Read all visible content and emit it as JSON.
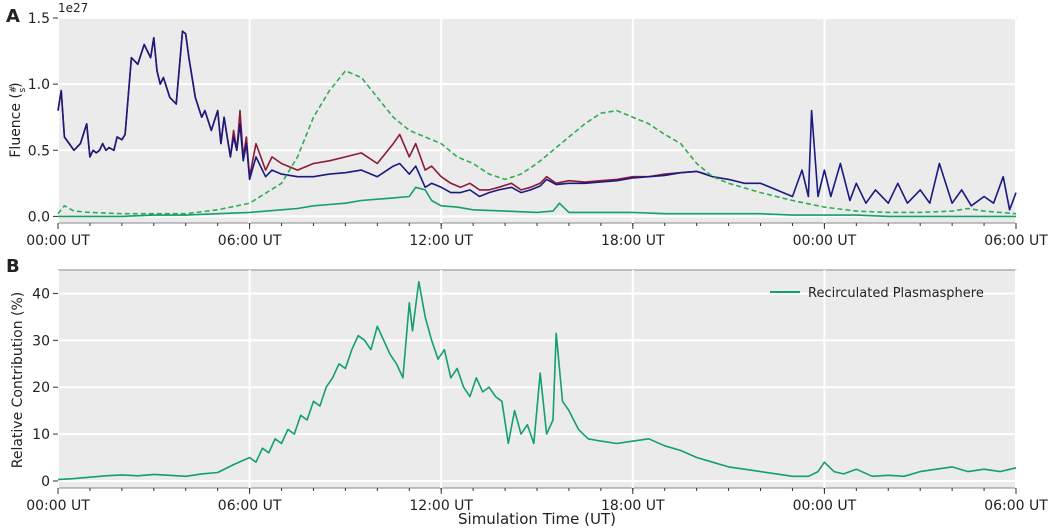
{
  "figure": {
    "xlabel": "Simulation Time (UT)"
  },
  "chart_data": [
    {
      "panel_label": "A",
      "type": "line",
      "title": "",
      "ylabel": "Fluence (#/s)",
      "ylabel_main": "Fluence (",
      "ylabel_num": "#",
      "ylabel_den": "s",
      "ylabel_close": ")",
      "y_offset_label": "1e27",
      "xlim": [
        0,
        30
      ],
      "ylim": [
        -0.05,
        1.5
      ],
      "yticks": [
        0.0,
        0.5,
        1.0,
        1.5
      ],
      "ytick_labels": [
        "0.0",
        "0.5",
        "1.0",
        "1.5"
      ],
      "xticks": [
        0,
        6,
        12,
        18,
        24,
        30
      ],
      "xtick_labels": [
        "00:00 UT",
        "06:00 UT",
        "12:00 UT",
        "18:00 UT",
        "00:00 UT",
        "06:00 UT"
      ],
      "grid": true,
      "legend": null,
      "series": [
        {
          "color": "#8b1a3a",
          "style": "solid",
          "x": [
            0,
            0.1,
            0.2,
            0.35,
            0.5,
            0.7,
            0.9,
            1.0,
            1.1,
            1.2,
            1.3,
            1.4,
            1.5,
            1.6,
            1.75,
            1.85,
            2.0,
            2.1,
            2.3,
            2.5,
            2.7,
            2.9,
            3.0,
            3.1,
            3.2,
            3.3,
            3.5,
            3.7,
            3.9,
            4.0,
            4.1,
            4.3,
            4.5,
            4.6,
            4.8,
            5.0,
            5.1,
            5.2,
            5.3,
            5.4,
            5.5,
            5.6,
            5.7,
            5.8,
            5.9,
            6.0,
            6.2,
            6.5,
            6.7,
            7.0,
            7.5,
            8.0,
            8.5,
            9.0,
            9.5,
            10.0,
            10.5,
            10.7,
            11.0,
            11.2,
            11.5,
            11.7,
            12.0,
            12.3,
            12.6,
            12.9,
            13.2,
            13.5,
            13.8,
            14.2,
            14.5,
            14.8,
            15.1,
            15.3,
            15.6,
            16.0,
            16.5,
            17.0,
            17.5,
            18.0,
            18.5,
            19.0,
            19.5,
            20.0,
            20.3
          ],
          "y": [
            0.8,
            0.95,
            0.6,
            0.55,
            0.5,
            0.55,
            0.7,
            0.45,
            0.5,
            0.48,
            0.5,
            0.55,
            0.5,
            0.52,
            0.5,
            0.6,
            0.58,
            0.62,
            1.2,
            1.15,
            1.3,
            1.2,
            1.35,
            1.1,
            1.0,
            1.05,
            0.9,
            0.85,
            1.4,
            1.38,
            1.2,
            0.9,
            0.75,
            0.8,
            0.65,
            0.8,
            0.55,
            0.75,
            0.6,
            0.45,
            0.65,
            0.5,
            0.8,
            0.45,
            0.6,
            0.3,
            0.55,
            0.35,
            0.45,
            0.4,
            0.35,
            0.4,
            0.42,
            0.45,
            0.48,
            0.4,
            0.55,
            0.62,
            0.45,
            0.55,
            0.35,
            0.38,
            0.3,
            0.25,
            0.22,
            0.25,
            0.2,
            0.2,
            0.22,
            0.25,
            0.2,
            0.22,
            0.25,
            0.3,
            0.25,
            0.27,
            0.26,
            0.27,
            0.28,
            0.3,
            0.3,
            0.32,
            0.33,
            0.34,
            0.32
          ]
        },
        {
          "color": "#1a1a80",
          "style": "solid",
          "x": [
            0,
            0.1,
            0.2,
            0.35,
            0.5,
            0.7,
            0.9,
            1.0,
            1.1,
            1.2,
            1.3,
            1.4,
            1.5,
            1.6,
            1.75,
            1.85,
            2.0,
            2.1,
            2.3,
            2.5,
            2.7,
            2.9,
            3.0,
            3.1,
            3.2,
            3.3,
            3.5,
            3.7,
            3.9,
            4.0,
            4.1,
            4.3,
            4.5,
            4.6,
            4.8,
            5.0,
            5.1,
            5.2,
            5.3,
            5.4,
            5.5,
            5.6,
            5.7,
            5.8,
            5.9,
            6.0,
            6.2,
            6.5,
            6.7,
            7.0,
            7.5,
            8.0,
            8.5,
            9.0,
            9.5,
            10.0,
            10.5,
            10.7,
            11.0,
            11.2,
            11.5,
            11.7,
            12.0,
            12.3,
            12.6,
            12.9,
            13.2,
            13.5,
            13.8,
            14.2,
            14.5,
            14.8,
            15.1,
            15.3,
            15.6,
            16.0,
            16.5,
            17.0,
            17.5,
            18.0,
            18.5,
            19.0,
            19.5,
            20.0,
            20.5,
            21.0,
            21.5,
            22.0,
            22.5,
            23.0,
            23.3,
            23.5,
            23.6,
            23.8,
            24.0,
            24.2,
            24.5,
            24.8,
            25.0,
            25.3,
            25.6,
            26.0,
            26.3,
            26.6,
            27.0,
            27.3,
            27.6,
            28.0,
            28.3,
            28.6,
            29.0,
            29.3,
            29.6,
            29.8,
            30.0
          ],
          "y": [
            0.8,
            0.95,
            0.6,
            0.55,
            0.5,
            0.55,
            0.7,
            0.45,
            0.5,
            0.48,
            0.5,
            0.55,
            0.5,
            0.52,
            0.5,
            0.6,
            0.58,
            0.62,
            1.2,
            1.15,
            1.3,
            1.2,
            1.35,
            1.1,
            1.0,
            1.05,
            0.9,
            0.85,
            1.4,
            1.38,
            1.2,
            0.9,
            0.75,
            0.8,
            0.65,
            0.8,
            0.55,
            0.75,
            0.6,
            0.45,
            0.6,
            0.5,
            0.7,
            0.42,
            0.55,
            0.28,
            0.45,
            0.3,
            0.35,
            0.32,
            0.3,
            0.3,
            0.32,
            0.33,
            0.35,
            0.3,
            0.38,
            0.4,
            0.32,
            0.38,
            0.22,
            0.25,
            0.22,
            0.18,
            0.18,
            0.2,
            0.15,
            0.18,
            0.2,
            0.22,
            0.18,
            0.2,
            0.23,
            0.28,
            0.24,
            0.25,
            0.25,
            0.26,
            0.27,
            0.29,
            0.3,
            0.31,
            0.33,
            0.34,
            0.3,
            0.28,
            0.25,
            0.25,
            0.2,
            0.15,
            0.35,
            0.15,
            0.8,
            0.15,
            0.35,
            0.15,
            0.4,
            0.12,
            0.25,
            0.1,
            0.2,
            0.1,
            0.25,
            0.1,
            0.2,
            0.1,
            0.4,
            0.1,
            0.2,
            0.08,
            0.15,
            0.1,
            0.3,
            0.05,
            0.18
          ]
        },
        {
          "color": "#2eae52",
          "style": "dashed",
          "x": [
            0,
            0.2,
            0.5,
            1,
            2,
            3,
            4,
            5,
            6,
            7,
            7.5,
            8,
            8.5,
            9,
            9.5,
            10,
            10.5,
            11,
            11.5,
            12,
            12.5,
            13,
            13.5,
            14,
            14.5,
            15,
            15.5,
            16,
            16.5,
            17,
            17.5,
            18,
            18.5,
            19,
            19.5,
            20,
            20.5,
            21,
            22,
            23,
            24,
            25,
            26,
            27,
            28,
            28.5,
            29,
            30
          ],
          "y": [
            0.02,
            0.08,
            0.04,
            0.03,
            0.02,
            0.02,
            0.02,
            0.05,
            0.1,
            0.25,
            0.45,
            0.75,
            0.95,
            1.1,
            1.05,
            0.9,
            0.75,
            0.65,
            0.6,
            0.55,
            0.45,
            0.4,
            0.32,
            0.28,
            0.32,
            0.4,
            0.5,
            0.6,
            0.7,
            0.78,
            0.8,
            0.75,
            0.7,
            0.62,
            0.55,
            0.4,
            0.3,
            0.25,
            0.18,
            0.12,
            0.07,
            0.04,
            0.03,
            0.03,
            0.04,
            0.06,
            0.04,
            0.02
          ]
        },
        {
          "color": "#12a06b",
          "style": "solid",
          "x": [
            0,
            1,
            2,
            3,
            4,
            5,
            6,
            7,
            7.5,
            8,
            8.5,
            9,
            9.5,
            10,
            10.5,
            11,
            11.2,
            11.5,
            11.7,
            12,
            12.5,
            13,
            14,
            15,
            15.5,
            15.7,
            16,
            17,
            18,
            19,
            20,
            21,
            22,
            23,
            24,
            25,
            26,
            27,
            28,
            29,
            30
          ],
          "y": [
            0.0,
            0.0,
            0.0,
            0.01,
            0.01,
            0.02,
            0.03,
            0.05,
            0.06,
            0.08,
            0.09,
            0.1,
            0.12,
            0.13,
            0.14,
            0.15,
            0.22,
            0.2,
            0.12,
            0.08,
            0.07,
            0.05,
            0.04,
            0.03,
            0.04,
            0.1,
            0.03,
            0.03,
            0.03,
            0.02,
            0.02,
            0.02,
            0.02,
            0.01,
            0.01,
            0.01,
            0.0,
            0.0,
            0.0,
            0.0,
            0.0
          ]
        }
      ]
    },
    {
      "panel_label": "B",
      "type": "line",
      "title": "",
      "ylabel": "Relative Contribution (%)",
      "xlabel": "Simulation Time (UT)",
      "xlim": [
        0,
        30
      ],
      "ylim": [
        -1.5,
        45
      ],
      "yticks": [
        0,
        10,
        20,
        30,
        40
      ],
      "ytick_labels": [
        "0",
        "10",
        "20",
        "30",
        "40"
      ],
      "xticks": [
        0,
        6,
        12,
        18,
        24,
        30
      ],
      "xtick_labels": [
        "00:00 UT",
        "06:00 UT",
        "12:00 UT",
        "18:00 UT",
        "00:00 UT",
        "06:00 UT"
      ],
      "grid": true,
      "legend": "top-right",
      "series": [
        {
          "name": "Recirculated Plasmasphere",
          "color": "#12a06b",
          "style": "solid",
          "x": [
            0,
            0.5,
            1,
            1.5,
            2,
            2.5,
            3,
            3.5,
            4,
            4.5,
            5,
            5.5,
            6,
            6.2,
            6.4,
            6.6,
            6.8,
            7.0,
            7.2,
            7.4,
            7.6,
            7.8,
            8.0,
            8.2,
            8.4,
            8.6,
            8.8,
            9.0,
            9.2,
            9.4,
            9.6,
            9.8,
            10.0,
            10.2,
            10.4,
            10.6,
            10.8,
            11.0,
            11.1,
            11.3,
            11.5,
            11.7,
            11.9,
            12.1,
            12.3,
            12.5,
            12.7,
            12.9,
            13.1,
            13.3,
            13.5,
            13.7,
            13.9,
            14.1,
            14.3,
            14.5,
            14.7,
            14.9,
            15.1,
            15.3,
            15.5,
            15.6,
            15.8,
            16.0,
            16.3,
            16.6,
            17,
            17.5,
            18,
            18.5,
            19,
            19.5,
            20,
            20.5,
            21,
            21.5,
            22,
            22.5,
            23,
            23.5,
            23.8,
            24,
            24.3,
            24.6,
            25,
            25.5,
            26,
            26.5,
            27,
            27.5,
            28,
            28.5,
            29,
            29.5,
            30
          ],
          "y": [
            0.3,
            0.5,
            0.8,
            1.1,
            1.3,
            1.1,
            1.4,
            1.2,
            1.0,
            1.5,
            1.8,
            3.5,
            5.0,
            4.0,
            7.0,
            6.0,
            9.0,
            8.0,
            11.0,
            10.0,
            14.0,
            13.0,
            17.0,
            16.0,
            20.0,
            22.0,
            25.0,
            24.0,
            28.0,
            31.0,
            30.0,
            28.0,
            33.0,
            30.0,
            27.0,
            25.0,
            22.0,
            38.0,
            32.0,
            42.5,
            35.0,
            30.0,
            26.0,
            28.0,
            22.0,
            24.0,
            20.0,
            18.0,
            22.0,
            19.0,
            20.0,
            18.0,
            17.0,
            8.0,
            15.0,
            10.0,
            12.0,
            8.0,
            23.0,
            10.0,
            13.0,
            31.5,
            17.0,
            15.0,
            11.0,
            9.0,
            8.5,
            8.0,
            8.5,
            9.0,
            7.5,
            6.5,
            5.0,
            4.0,
            3.0,
            2.5,
            2.0,
            1.5,
            1.0,
            1.0,
            2.0,
            4.0,
            2.0,
            1.5,
            2.5,
            1.0,
            1.2,
            1.0,
            2.0,
            2.5,
            3.0,
            2.0,
            2.5,
            2.0,
            2.8
          ]
        }
      ]
    }
  ]
}
